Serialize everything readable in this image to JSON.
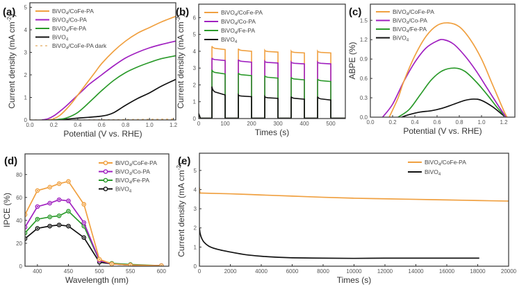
{
  "colors": {
    "BiVO4/CoFe-PA": "#f0a040",
    "BiVO4/Co-PA": "#a020c0",
    "BiVO4/Fe-PA": "#2a9a2a",
    "BiVO4": "#111111",
    "BiVO4/CoFe-PA dark": "#e8b878"
  },
  "chart_data": [
    {
      "panel": "(a)",
      "type": "line",
      "xlabel": "Potential (V vs. RHE)",
      "ylabel": "Current density (mA cm⁻²)",
      "xlim": [
        0.0,
        1.22
      ],
      "ylim": [
        0,
        5.2
      ],
      "xticks": [
        "0.0",
        "0.2",
        "0.4",
        "0.6",
        "0.8",
        "1.0",
        "1.2"
      ],
      "xtick_values": [
        0,
        0.2,
        0.4,
        0.6,
        0.8,
        1.0,
        1.2
      ],
      "yticks": [
        "0",
        "1",
        "2",
        "3",
        "4",
        "5"
      ],
      "ytick_values": [
        0,
        1,
        2,
        3,
        4,
        5
      ],
      "legend_position": "top-left",
      "series": [
        {
          "name": "BiVO4/CoFe-PA",
          "label_main": "BiVO",
          "label_sub": "4",
          "label_rest": "/CoFe-PA",
          "style": "solid",
          "x": [
            0.15,
            0.2,
            0.25,
            0.3,
            0.35,
            0.4,
            0.45,
            0.5,
            0.55,
            0.6,
            0.7,
            0.8,
            0.9,
            1.0,
            1.1,
            1.22
          ],
          "y": [
            0,
            0.05,
            0.2,
            0.45,
            0.75,
            1.1,
            1.45,
            1.8,
            2.15,
            2.5,
            3.05,
            3.5,
            3.85,
            4.1,
            4.35,
            4.6
          ]
        },
        {
          "name": "BiVO4/Co-PA",
          "label_main": "BiVO",
          "label_sub": "4",
          "label_rest": "/Co-PA",
          "style": "solid",
          "x": [
            0.1,
            0.15,
            0.2,
            0.25,
            0.3,
            0.35,
            0.4,
            0.45,
            0.5,
            0.6,
            0.7,
            0.8,
            0.9,
            1.0,
            1.1,
            1.22
          ],
          "y": [
            0,
            0.05,
            0.18,
            0.38,
            0.6,
            0.85,
            1.1,
            1.35,
            1.6,
            2.0,
            2.4,
            2.75,
            3.0,
            3.2,
            3.35,
            3.5
          ]
        },
        {
          "name": "BiVO4/Fe-PA",
          "label_main": "BiVO",
          "label_sub": "4",
          "label_rest": "/Fe-PA",
          "style": "solid",
          "x": [
            0.2,
            0.25,
            0.3,
            0.35,
            0.4,
            0.45,
            0.5,
            0.55,
            0.6,
            0.7,
            0.8,
            0.9,
            1.0,
            1.1,
            1.22
          ],
          "y": [
            0,
            0.03,
            0.08,
            0.18,
            0.33,
            0.55,
            0.8,
            1.05,
            1.3,
            1.75,
            2.1,
            2.35,
            2.55,
            2.72,
            2.85
          ]
        },
        {
          "name": "BiVO4",
          "label_main": "BiVO",
          "label_sub": "4",
          "label_rest": "",
          "style": "solid",
          "x": [
            0.25,
            0.3,
            0.4,
            0.5,
            0.6,
            0.65,
            0.7,
            0.75,
            0.8,
            0.9,
            1.0,
            1.1,
            1.22
          ],
          "y": [
            0,
            0.03,
            0.08,
            0.12,
            0.17,
            0.22,
            0.32,
            0.48,
            0.65,
            0.95,
            1.2,
            1.5,
            1.8
          ]
        },
        {
          "name": "BiVO4/CoFe-PA dark",
          "label_main": "BiVO",
          "label_sub": "4",
          "label_rest": "/CoFe-PA dark",
          "style": "dashed",
          "x": [
            0.0,
            0.4,
            0.8,
            1.22
          ],
          "y": [
            0,
            0,
            0.02,
            0.04
          ]
        }
      ]
    },
    {
      "panel": "(b)",
      "type": "line",
      "xlabel": "Times (s)",
      "ylabel": "Current density (mA cm⁻²)",
      "xlim": [
        0,
        555
      ],
      "ylim": [
        0,
        6.8
      ],
      "xticks": [
        "0",
        "100",
        "200",
        "300",
        "400",
        "500"
      ],
      "xtick_values": [
        0,
        100,
        200,
        300,
        400,
        500
      ],
      "yticks": [
        "0",
        "1",
        "2",
        "3",
        "4",
        "5",
        "6"
      ],
      "ytick_values": [
        0,
        1,
        2,
        3,
        4,
        5,
        6
      ],
      "legend_position": "top-left",
      "light_on_intervals": [
        [
          50,
          100
        ],
        [
          150,
          200
        ],
        [
          250,
          300
        ],
        [
          350,
          400
        ],
        [
          450,
          500
        ]
      ],
      "series": [
        {
          "name": "BiVO4/CoFe-PA",
          "label_main": "BiVO",
          "label_sub": "4",
          "label_rest": "/CoFe-PA",
          "on_start": [
            4.3,
            4.15,
            4.05,
            4.0,
            4.0
          ],
          "on_end": [
            4.1,
            4.0,
            3.95,
            3.9,
            3.9
          ]
        },
        {
          "name": "BiVO4/Co-PA",
          "label_main": "BiVO",
          "label_sub": "4",
          "label_rest": "/Co-PA",
          "on_start": [
            3.6,
            3.5,
            3.4,
            3.35,
            3.35
          ],
          "on_end": [
            3.45,
            3.35,
            3.3,
            3.25,
            3.25
          ]
        },
        {
          "name": "BiVO4/Fe-PA",
          "label_main": "BiVO",
          "label_sub": "4",
          "label_rest": "/Fe-PA",
          "on_start": [
            2.9,
            2.7,
            2.55,
            2.45,
            2.35
          ],
          "on_end": [
            2.65,
            2.55,
            2.4,
            2.3,
            2.2
          ]
        },
        {
          "name": "BiVO4",
          "label_main": "BiVO",
          "label_sub": "4",
          "label_rest": "",
          "on_start": [
            1.9,
            1.4,
            1.3,
            1.3,
            1.3
          ],
          "on_end": [
            1.4,
            1.3,
            1.2,
            1.15,
            1.1
          ]
        }
      ]
    },
    {
      "panel": "(c)",
      "type": "line",
      "xlabel": "Potential (V vs. RHE)",
      "ylabel": "ABPE (%)",
      "xlim": [
        0.0,
        1.3
      ],
      "ylim": [
        0.0,
        1.75
      ],
      "xticks": [
        "0.0",
        "0.2",
        "0.4",
        "0.6",
        "0.8",
        "1.0",
        "1.2"
      ],
      "xtick_values": [
        0,
        0.2,
        0.4,
        0.6,
        0.8,
        1.0,
        1.2
      ],
      "yticks": [
        "0.0",
        "0.3",
        "0.6",
        "0.9",
        "1.2",
        "1.5"
      ],
      "ytick_values": [
        0,
        0.3,
        0.6,
        0.9,
        1.2,
        1.5
      ],
      "legend_position": "top-left",
      "series": [
        {
          "name": "BiVO4/CoFe-PA",
          "label_main": "BiVO",
          "label_sub": "4",
          "label_rest": "/CoFe-PA",
          "x": [
            0.17,
            0.25,
            0.3,
            0.4,
            0.5,
            0.6,
            0.7,
            0.8,
            0.9,
            1.0,
            1.1,
            1.2,
            1.23
          ],
          "y": [
            0,
            0.3,
            0.55,
            0.95,
            1.25,
            1.42,
            1.46,
            1.4,
            1.2,
            0.9,
            0.5,
            0.1,
            0
          ]
        },
        {
          "name": "BiVO4/Co-PA",
          "label_main": "BiVO",
          "label_sub": "4",
          "label_rest": "/Co-PA",
          "x": [
            0.11,
            0.2,
            0.3,
            0.4,
            0.5,
            0.6,
            0.66,
            0.75,
            0.85,
            0.95,
            1.05,
            1.15,
            1.22
          ],
          "y": [
            0,
            0.2,
            0.55,
            0.85,
            1.07,
            1.18,
            1.2,
            1.13,
            0.95,
            0.72,
            0.45,
            0.18,
            0
          ]
        },
        {
          "name": "BiVO4/Fe-PA",
          "label_main": "BiVO",
          "label_sub": "4",
          "label_rest": "/Fe-PA",
          "x": [
            0.25,
            0.35,
            0.45,
            0.55,
            0.65,
            0.76,
            0.85,
            0.95,
            1.05,
            1.15,
            1.22
          ],
          "y": [
            0,
            0.12,
            0.35,
            0.58,
            0.72,
            0.76,
            0.71,
            0.55,
            0.35,
            0.13,
            0
          ]
        },
        {
          "name": "BiVO4",
          "label_main": "BiVO",
          "label_sub": "4",
          "label_rest": "",
          "x": [
            0.28,
            0.35,
            0.45,
            0.55,
            0.65,
            0.75,
            0.85,
            0.93,
            1.0,
            1.1,
            1.2
          ],
          "y": [
            0,
            0.04,
            0.08,
            0.1,
            0.14,
            0.2,
            0.26,
            0.28,
            0.26,
            0.16,
            0.02
          ]
        }
      ]
    },
    {
      "panel": "(d)",
      "type": "line",
      "markers": true,
      "xlabel": "Wavelength (nm)",
      "ylabel": "IPCE (%)",
      "xlim": [
        380,
        612
      ],
      "ylim": [
        0,
        98
      ],
      "xticks": [
        "400",
        "450",
        "500",
        "550",
        "600"
      ],
      "xtick_values": [
        400,
        450,
        500,
        550,
        600
      ],
      "yticks": [
        "0",
        "20",
        "40",
        "60",
        "80"
      ],
      "ytick_values": [
        0,
        20,
        40,
        60,
        80
      ],
      "legend_position": "top-right",
      "x": [
        380,
        400,
        420,
        435,
        450,
        475,
        500,
        520,
        550,
        600
      ],
      "series": [
        {
          "name": "BiVO4/CoFe-PA",
          "label_main": "BiVO",
          "label_sub": "4",
          "label_rest": "/CoFe-PA",
          "y": [
            45,
            66,
            69,
            72,
            74,
            54,
            6,
            2,
            1,
            0.5
          ]
        },
        {
          "name": "BiVO4/Co-PA",
          "label_main": "BiVO",
          "label_sub": "4",
          "label_rest": "/Co-PA",
          "y": [
            34,
            52,
            55,
            58,
            57,
            38,
            5,
            2,
            1,
            0.5
          ]
        },
        {
          "name": "BiVO4/Fe-PA",
          "label_main": "BiVO",
          "label_sub": "4",
          "label_rest": "/Fe-PA",
          "y": [
            29,
            41,
            43,
            44,
            48,
            35,
            5,
            2.5,
            1.5,
            0.5
          ]
        },
        {
          "name": "BiVO4",
          "label_main": "BiVO",
          "label_sub": "4",
          "label_rest": "",
          "y": [
            24,
            33,
            35,
            36,
            35,
            25,
            3.5,
            2,
            1,
            0.5
          ]
        }
      ]
    },
    {
      "panel": "(e)",
      "type": "line",
      "xlabel": "Times (s)",
      "ylabel": "Current density (mA cm⁻²)",
      "xlim": [
        0,
        20000
      ],
      "ylim": [
        0,
        5.9
      ],
      "xticks": [
        "0",
        "2000",
        "4000",
        "6000",
        "8000",
        "10000",
        "12000",
        "14000",
        "16000",
        "18000",
        "20000"
      ],
      "xtick_values": [
        0,
        2000,
        4000,
        6000,
        8000,
        10000,
        12000,
        14000,
        16000,
        18000,
        20000
      ],
      "yticks": [
        "0",
        "1",
        "2",
        "3",
        "4",
        "5"
      ],
      "ytick_values": [
        0,
        1,
        2,
        3,
        4,
        5
      ],
      "legend_position": "top-right",
      "series": [
        {
          "name": "BiVO4/CoFe-PA",
          "label_main": "BiVO",
          "label_sub": "4",
          "label_rest": "/CoFe-PA",
          "x": [
            0,
            30,
            100,
            2000,
            4000,
            6000,
            8000,
            10000,
            12000,
            14000,
            16000,
            18000,
            20000
          ],
          "y": [
            4.1,
            3.85,
            3.82,
            3.78,
            3.72,
            3.66,
            3.6,
            3.55,
            3.52,
            3.49,
            3.46,
            3.43,
            3.4
          ]
        },
        {
          "name": "BiVO4",
          "label_main": "BiVO",
          "label_sub": "4",
          "label_rest": "",
          "x": [
            0,
            50,
            150,
            300,
            600,
            1000,
            1500,
            2000,
            3000,
            4000,
            5000,
            6000,
            8000,
            10000,
            12000,
            14000,
            16000,
            18100
          ],
          "y": [
            2.0,
            1.7,
            1.45,
            1.25,
            1.05,
            0.92,
            0.82,
            0.74,
            0.6,
            0.52,
            0.47,
            0.44,
            0.42,
            0.41,
            0.42,
            0.42,
            0.42,
            0.42
          ]
        }
      ]
    }
  ]
}
